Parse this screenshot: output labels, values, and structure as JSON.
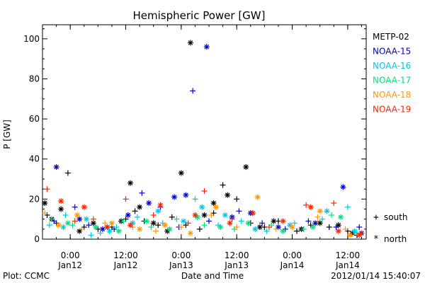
{
  "chart_data": {
    "type": "scatter",
    "title": "Hemispheric Power [GW]",
    "ylabel": "P [GW]",
    "xlabel": "Date and Time",
    "xlim": [
      "2012-01-11T18:00",
      "2012-01-14T16:00"
    ],
    "ylim": [
      0,
      107
    ],
    "y_ticks": [
      0,
      20,
      40,
      60,
      80,
      100
    ],
    "x_ticks": [
      {
        "at": "2012-01-12T00:00",
        "time": "0:00",
        "date": "Jan12"
      },
      {
        "at": "2012-01-12T12:00",
        "time": "12:00",
        "date": "Jan12"
      },
      {
        "at": "2012-01-13T00:00",
        "time": "0:00",
        "date": "Jan13"
      },
      {
        "at": "2012-01-13T12:00",
        "time": "12:00",
        "date": "Jan13"
      },
      {
        "at": "2012-01-14T00:00",
        "time": "0:00",
        "date": "Jan14"
      },
      {
        "at": "2012-01-14T12:00",
        "time": "12:00",
        "date": "Jan14"
      }
    ],
    "marker_legend": [
      {
        "symbol": "+",
        "label": "south"
      },
      {
        "symbol": "*",
        "label": "north"
      }
    ],
    "series": [
      {
        "name": "METP-02",
        "color": "#000000",
        "south": [
          [
            "2012-01-11T19:00",
            12
          ],
          [
            "2012-01-11T21:00",
            8
          ],
          [
            "2012-01-11T23:30",
            33
          ],
          [
            "2012-01-12T03:00",
            6
          ],
          [
            "2012-01-12T06:00",
            5
          ],
          [
            "2012-01-12T09:00",
            6
          ],
          [
            "2012-01-12T12:00",
            10
          ],
          [
            "2012-01-12T14:00",
            14
          ],
          [
            "2012-01-12T16:00",
            9
          ],
          [
            "2012-01-12T19:00",
            7
          ],
          [
            "2012-01-12T22:00",
            11
          ],
          [
            "2012-01-13T01:00",
            7
          ],
          [
            "2012-01-13T04:00",
            5
          ],
          [
            "2012-01-13T07:00",
            13
          ],
          [
            "2012-01-13T09:00",
            27
          ],
          [
            "2012-01-13T12:00",
            20
          ],
          [
            "2012-01-13T15:00",
            8
          ],
          [
            "2012-01-13T18:00",
            6
          ],
          [
            "2012-01-13T21:00",
            9
          ],
          [
            "2012-01-14T01:00",
            4
          ],
          [
            "2012-01-14T04:00",
            7
          ],
          [
            "2012-01-14T08:00",
            6
          ],
          [
            "2012-01-14T12:00",
            4
          ],
          [
            "2012-01-14T14:00",
            2
          ]
        ],
        "north": [
          [
            "2012-01-11T18:30",
            18
          ],
          [
            "2012-01-11T20:00",
            10
          ],
          [
            "2012-01-11T22:00",
            15
          ],
          [
            "2012-01-12T02:00",
            4
          ],
          [
            "2012-01-12T05:00",
            8
          ],
          [
            "2012-01-12T08:00",
            6
          ],
          [
            "2012-01-12T11:00",
            9
          ],
          [
            "2012-01-12T13:00",
            28
          ],
          [
            "2012-01-12T15:00",
            16
          ],
          [
            "2012-01-12T18:00",
            8
          ],
          [
            "2012-01-12T21:00",
            4
          ],
          [
            "2012-01-13T00:00",
            33
          ],
          [
            "2012-01-13T02:00",
            98
          ],
          [
            "2012-01-13T05:00",
            12
          ],
          [
            "2012-01-13T07:00",
            18
          ],
          [
            "2012-01-13T10:00",
            22
          ],
          [
            "2012-01-13T14:00",
            36
          ],
          [
            "2012-01-13T17:00",
            6
          ],
          [
            "2012-01-13T20:00",
            9
          ],
          [
            "2012-01-14T02:00",
            5
          ],
          [
            "2012-01-14T06:00",
            8
          ],
          [
            "2012-01-14T10:00",
            7
          ],
          [
            "2012-01-14T13:00",
            3
          ]
        ]
      },
      {
        "name": "NOAA-15",
        "color": "#0000cc",
        "south": [
          [
            "2012-01-11T20:30",
            9
          ],
          [
            "2012-01-12T01:00",
            16
          ],
          [
            "2012-01-12T04:00",
            7
          ],
          [
            "2012-01-12T09:30",
            5
          ],
          [
            "2012-01-12T15:30",
            23
          ],
          [
            "2012-01-12T19:30",
            16
          ],
          [
            "2012-01-12T23:30",
            6
          ],
          [
            "2012-01-13T02:30",
            74
          ],
          [
            "2012-01-13T06:00",
            9
          ],
          [
            "2012-01-13T12:30",
            14
          ],
          [
            "2012-01-13T17:30",
            8
          ],
          [
            "2012-01-13T22:30",
            5
          ],
          [
            "2012-01-14T03:30",
            9
          ],
          [
            "2012-01-14T09:30",
            6
          ],
          [
            "2012-01-14T14:30",
            6
          ]
        ],
        "north": [
          [
            "2012-01-11T21:00",
            36
          ],
          [
            "2012-01-12T02:00",
            10
          ],
          [
            "2012-01-12T07:00",
            5
          ],
          [
            "2012-01-12T12:30",
            12
          ],
          [
            "2012-01-12T17:00",
            18
          ],
          [
            "2012-01-12T22:30",
            21
          ],
          [
            "2012-01-13T01:00",
            22
          ],
          [
            "2012-01-13T05:30",
            96
          ],
          [
            "2012-01-13T11:00",
            11
          ],
          [
            "2012-01-13T15:00",
            13
          ],
          [
            "2012-01-13T21:00",
            6
          ],
          [
            "2012-01-14T05:00",
            8
          ],
          [
            "2012-01-14T11:00",
            26
          ],
          [
            "2012-01-14T15:00",
            3
          ]
        ]
      },
      {
        "name": "NOAA-16",
        "color": "#00c8e6",
        "south": [
          [
            "2012-01-11T19:30",
            7
          ],
          [
            "2012-01-11T23:00",
            12
          ],
          [
            "2012-01-12T04:30",
            2
          ],
          [
            "2012-01-12T10:00",
            6
          ],
          [
            "2012-01-12T14:30",
            11
          ],
          [
            "2012-01-12T20:00",
            8
          ],
          [
            "2012-01-13T03:00",
            20
          ],
          [
            "2012-01-13T08:00",
            7
          ],
          [
            "2012-01-13T13:00",
            9
          ],
          [
            "2012-01-13T18:30",
            4
          ],
          [
            "2012-01-14T00:30",
            8
          ],
          [
            "2012-01-14T06:30",
            10
          ],
          [
            "2012-01-14T12:00",
            16
          ]
        ],
        "north": [
          [
            "2012-01-11T22:30",
            6
          ],
          [
            "2012-01-12T03:30",
            10
          ],
          [
            "2012-01-12T08:30",
            4
          ],
          [
            "2012-01-12T13:30",
            8
          ],
          [
            "2012-01-12T19:00",
            14
          ],
          [
            "2012-01-13T00:30",
            9
          ],
          [
            "2012-01-13T04:30",
            16
          ],
          [
            "2012-01-13T09:30",
            12
          ],
          [
            "2012-01-13T16:00",
            5
          ],
          [
            "2012-01-13T23:30",
            7
          ],
          [
            "2012-01-14T07:30",
            14
          ],
          [
            "2012-01-14T13:30",
            4
          ]
        ]
      },
      {
        "name": "NOAA-17",
        "color": "#00e07a",
        "south": [
          [
            "2012-01-11T20:00",
            10
          ],
          [
            "2012-01-12T00:30",
            7
          ],
          [
            "2012-01-12T06:30",
            3
          ],
          [
            "2012-01-12T11:30",
            9
          ],
          [
            "2012-01-12T17:30",
            6
          ],
          [
            "2012-01-12T23:00",
            10
          ],
          [
            "2012-01-13T05:00",
            7
          ],
          [
            "2012-01-13T11:30",
            5
          ],
          [
            "2012-01-13T19:30",
            7
          ],
          [
            "2012-01-14T02:30",
            5
          ],
          [
            "2012-01-14T08:30",
            12
          ],
          [
            "2012-01-14T14:00",
            3
          ]
        ],
        "north": [
          [
            "2012-01-11T23:30",
            8
          ],
          [
            "2012-01-12T05:30",
            6
          ],
          [
            "2012-01-12T10:30",
            4
          ],
          [
            "2012-01-12T16:30",
            9
          ],
          [
            "2012-01-12T21:30",
            5
          ],
          [
            "2012-01-13T03:30",
            11
          ],
          [
            "2012-01-13T08:30",
            6
          ],
          [
            "2012-01-13T14:30",
            8
          ],
          [
            "2012-01-13T22:00",
            4
          ],
          [
            "2012-01-14T04:30",
            6
          ],
          [
            "2012-01-14T10:30",
            11
          ]
        ]
      },
      {
        "name": "NOAA-18",
        "color": "#ff9900",
        "south": [
          [
            "2012-01-11T18:30",
            13
          ],
          [
            "2012-01-12T02:30",
            5
          ],
          [
            "2012-01-12T07:30",
            8
          ],
          [
            "2012-01-12T13:30",
            6
          ],
          [
            "2012-01-12T18:30",
            4
          ],
          [
            "2012-01-13T00:00",
            6
          ],
          [
            "2012-01-13T06:30",
            12
          ],
          [
            "2012-01-13T12:00",
            6
          ],
          [
            "2012-01-13T20:30",
            5
          ],
          [
            "2012-01-14T05:30",
            11
          ],
          [
            "2012-01-14T11:30",
            5
          ]
        ],
        "north": [
          [
            "2012-01-11T21:30",
            7
          ],
          [
            "2012-01-12T01:30",
            12
          ],
          [
            "2012-01-12T09:00",
            8
          ],
          [
            "2012-01-12T15:00",
            5
          ],
          [
            "2012-01-12T20:30",
            7
          ],
          [
            "2012-01-13T02:00",
            3
          ],
          [
            "2012-01-13T07:30",
            16
          ],
          [
            "2012-01-13T16:30",
            21
          ],
          [
            "2012-01-14T00:00",
            6
          ],
          [
            "2012-01-14T06:00",
            14
          ],
          [
            "2012-01-14T12:30",
            2
          ]
        ]
      },
      {
        "name": "NOAA-19",
        "color": "#ff2200",
        "south": [
          [
            "2012-01-11T19:00",
            25
          ],
          [
            "2012-01-12T01:00",
            9
          ],
          [
            "2012-01-12T05:00",
            10
          ],
          [
            "2012-01-12T12:00",
            20
          ],
          [
            "2012-01-12T18:00",
            12
          ],
          [
            "2012-01-13T01:30",
            8
          ],
          [
            "2012-01-13T05:00",
            24
          ],
          [
            "2012-01-13T11:00",
            10
          ],
          [
            "2012-01-13T19:00",
            6
          ],
          [
            "2012-01-14T03:00",
            17
          ],
          [
            "2012-01-14T09:00",
            18
          ],
          [
            "2012-01-14T15:00",
            3
          ]
        ],
        "north": [
          [
            "2012-01-11T22:00",
            19
          ],
          [
            "2012-01-12T03:00",
            16
          ],
          [
            "2012-01-12T08:00",
            6
          ],
          [
            "2012-01-12T13:00",
            7
          ],
          [
            "2012-01-12T19:30",
            17
          ],
          [
            "2012-01-13T03:00",
            12
          ],
          [
            "2012-01-13T10:30",
            8
          ],
          [
            "2012-01-13T15:30",
            13
          ],
          [
            "2012-01-13T22:00",
            9
          ],
          [
            "2012-01-14T04:00",
            16
          ],
          [
            "2012-01-14T10:00",
            4
          ],
          [
            "2012-01-14T14:30",
            2
          ]
        ]
      }
    ]
  },
  "footer": {
    "left": "Plot: CCMC",
    "right": "2012/01/14 15:40:07"
  }
}
